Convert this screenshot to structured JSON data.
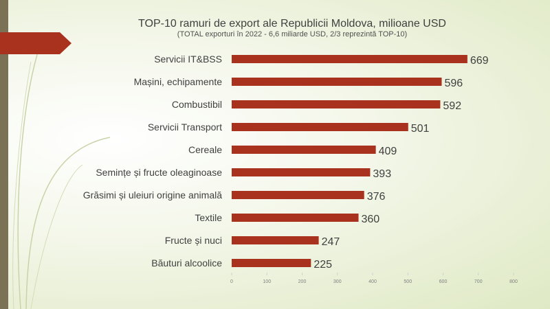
{
  "chart_data": {
    "type": "bar",
    "orientation": "horizontal",
    "title": "TOP-10 ramuri de export ale Republicii Moldova, milioane USD",
    "subtitle": "(TOTAL exporturi în 2022 - 6,6 miliarde USD,  2/3 reprezintă TOP-10)",
    "categories": [
      "Servicii IT&BSS",
      "Mașini, echipamente",
      "Combustibil",
      "Servicii Transport",
      "Cereale",
      "Semințe și fructe oleaginoase",
      "Grăsimi și uleiuri origine animală",
      "Textile",
      "Fructe și nuci",
      "Băuturi alcoolice"
    ],
    "values": [
      669,
      596,
      592,
      501,
      409,
      393,
      376,
      360,
      247,
      225
    ],
    "xlim": [
      0,
      800
    ],
    "xticks": [
      0,
      100,
      200,
      300,
      400,
      500,
      600,
      700,
      800
    ],
    "xlabel": "",
    "ylabel": "",
    "bar_color": "#a8321e"
  }
}
